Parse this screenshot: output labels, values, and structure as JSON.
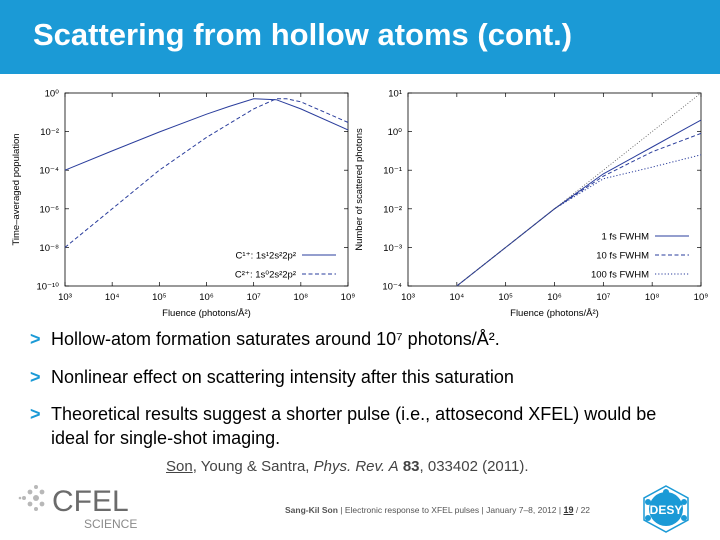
{
  "header": {
    "title": "Scattering from hollow atoms (cont.)",
    "accent_color": "#1b9ad6"
  },
  "chart_data": [
    {
      "type": "line",
      "title": "",
      "xlabel": "Fluence (photons/Å²)",
      "ylabel": "Time–averaged population",
      "x_scale": "log",
      "y_scale": "log",
      "xlim": [
        1000,
        1000000000
      ],
      "ylim": [
        1e-10,
        1
      ],
      "x_ticks": [
        1000,
        10000,
        100000,
        1000000,
        10000000,
        100000000,
        1000000000
      ],
      "x_tick_labels": [
        "10³",
        "10⁴",
        "10⁵",
        "10⁶",
        "10⁷",
        "10⁸",
        "10⁹"
      ],
      "y_ticks": [
        1e-10,
        1e-08,
        1e-06,
        0.0001,
        0.01,
        1
      ],
      "y_tick_labels": [
        "10⁻¹⁰",
        "10⁻⁸",
        "10⁻⁶",
        "10⁻⁴",
        "10⁻²",
        "10⁰"
      ],
      "legend_position": "bottom-right",
      "series": [
        {
          "name": "C¹⁺: 1s¹2s²2p²",
          "style": "solid",
          "color": "#2a3d9c",
          "x": [
            1000,
            10000,
            100000,
            1000000,
            3000000,
            10000000,
            30000000,
            100000000,
            1000000000
          ],
          "y": [
            0.0001,
            0.001,
            0.0095,
            0.08,
            0.2,
            0.5,
            0.45,
            0.15,
            0.0123
          ]
        },
        {
          "name": "C²⁺: 1s⁰2s²2p²",
          "style": "dashed",
          "color": "#2a3d9c",
          "x": [
            1000,
            10000,
            100000,
            1000000,
            10000000,
            30000000,
            50000000,
            100000000,
            1000000000
          ],
          "y": [
            1e-08,
            1e-06,
            0.0001,
            0.005,
            0.15,
            0.5,
            0.5,
            0.35,
            0.03
          ]
        }
      ]
    },
    {
      "type": "line",
      "title": "",
      "xlabel": "Fluence (photons/Å²)",
      "ylabel": "Number of scattered photons",
      "x_scale": "log",
      "y_scale": "log",
      "xlim": [
        1000,
        1000000000
      ],
      "ylim": [
        0.0001,
        10
      ],
      "x_ticks": [
        1000,
        10000,
        100000,
        1000000,
        10000000,
        100000000,
        1000000000
      ],
      "x_tick_labels": [
        "10³",
        "10⁴",
        "10⁵",
        "10⁶",
        "10⁷",
        "10⁸",
        "10⁹"
      ],
      "y_ticks": [
        0.0001,
        0.001,
        0.01,
        0.1,
        1,
        10
      ],
      "y_tick_labels": [
        "10⁻⁴",
        "10⁻³",
        "10⁻²",
        "10⁻¹",
        "10⁰",
        "10¹"
      ],
      "legend_position": "bottom-right",
      "series": [
        {
          "name": "1 fs FWHM",
          "style": "solid",
          "color": "#2a3d9c",
          "x": [
            10000,
            100000,
            1000000,
            10000000,
            100000000,
            1000000000
          ],
          "y": [
            0.0001,
            0.001,
            0.01,
            0.08,
            0.4,
            2
          ]
        },
        {
          "name": "10 fs FWHM",
          "style": "dashed",
          "color": "#2a3d9c",
          "x": [
            10000,
            100000,
            1000000,
            10000000,
            100000000,
            1000000000
          ],
          "y": [
            0.0001,
            0.001,
            0.01,
            0.07,
            0.3,
            0.9
          ]
        },
        {
          "name": "100 fs FWHM",
          "style": "dotted",
          "color": "#2a3d9c",
          "x": [
            10000,
            100000,
            1000000,
            10000000,
            100000000,
            1000000000
          ],
          "y": [
            0.0001,
            0.001,
            0.01,
            0.06,
            0.12,
            0.25
          ]
        },
        {
          "name": "",
          "style": "dotted-gray",
          "color": "#555555",
          "x": [
            10000,
            1000000000
          ],
          "y": [
            0.0001,
            10
          ]
        }
      ]
    }
  ],
  "bullets": [
    {
      "marker": ">",
      "text": "Hollow-atom formation saturates around 10⁷ photons/Å²."
    },
    {
      "marker": ">",
      "text": "Nonlinear effect on scattering intensity after this saturation"
    },
    {
      "marker": ">",
      "text": "Theoretical results suggest a shorter pulse (i.e., attosecond XFEL) would be ideal for single-shot imaging."
    }
  ],
  "citation": {
    "author": "Son",
    "rest": ", Young & Santra, ",
    "journal": "Phys. Rev. A",
    "space": " ",
    "volume": "83",
    "pages": ", 033402 (2011)."
  },
  "footer": {
    "presenter": "Sang-Kil Son",
    "sep1": "  |  ",
    "talk": "Electronic response to XFEL pulses",
    "sep2": "  |  ",
    "date": "January 7–8, 2012",
    "sep3": "  |  ",
    "page": "19",
    "total": " / 22"
  },
  "logos": {
    "cfel_text": "CFEL",
    "cfel_sub": "SCIENCE",
    "desy_text": "DESY"
  }
}
